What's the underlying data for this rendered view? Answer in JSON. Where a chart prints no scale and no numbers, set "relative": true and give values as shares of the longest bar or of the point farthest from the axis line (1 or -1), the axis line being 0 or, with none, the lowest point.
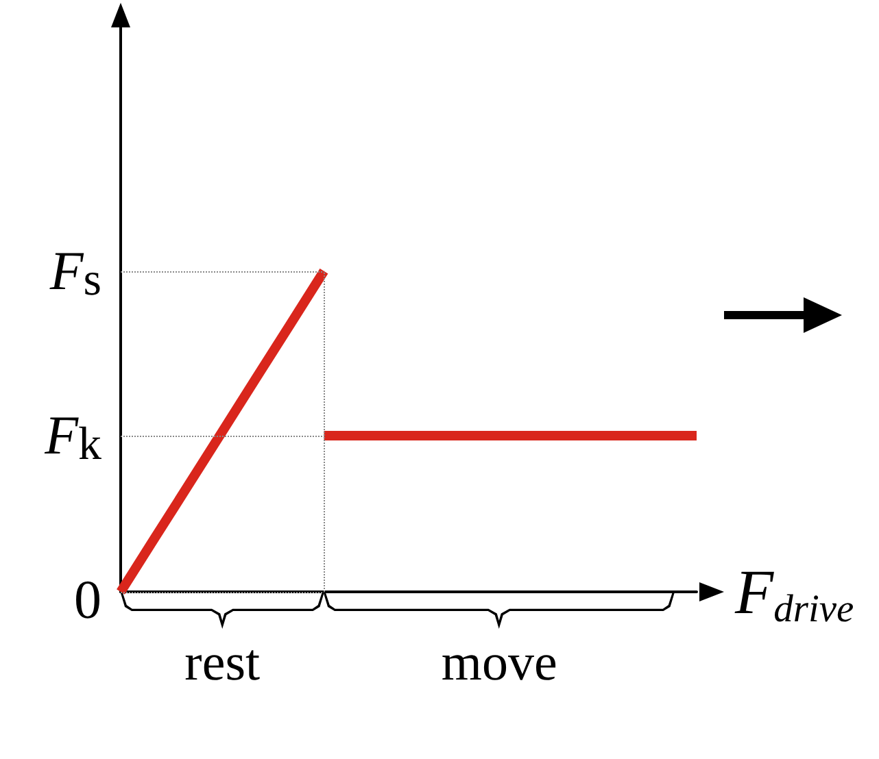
{
  "chart_data": {
    "type": "line",
    "relative": true,
    "xlabel": "F$_{drive}$",
    "ylim": [
      0,
      1.76
    ],
    "categories": [
      null,
      null,
      null,
      null,
      null,
      null,
      null,
      null,
      null,
      null,
      null,
      null,
      null,
      null,
      null,
      null,
      null,
      null
    ],
    "series": [
      {
        "color": "#d9261c",
        "values": [
          0,
          0.167,
          0.333,
          0.5,
          0.667,
          0.833,
          1,
          null,
          null,
          null,
          null,
          null,
          null,
          null,
          null,
          null,
          null,
          null
        ]
      },
      {
        "color": "#d9261c",
        "values": [
          null,
          null,
          null,
          null,
          null,
          null,
          0.487,
          0.487,
          0.487,
          0.487,
          0.487,
          0.487,
          0.487,
          0.487,
          0.487,
          0.487,
          0.487,
          0.487
        ]
      }
    ],
    "ref_lines": [
      {
        "axis": "y",
        "value": 1,
        "label": "F$_{s}$"
      },
      {
        "axis": "y",
        "value": 0.487,
        "label": "F$_{k}$"
      },
      {
        "axis": "y",
        "value": 0,
        "label": "0"
      }
    ],
    "annotations": [
      "rest",
      "move"
    ]
  }
}
